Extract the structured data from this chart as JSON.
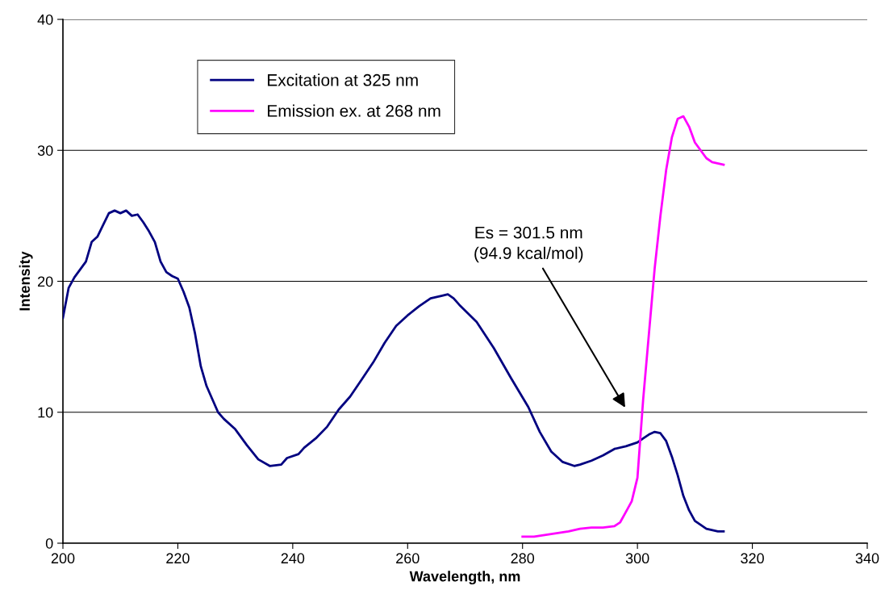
{
  "chart_data": {
    "type": "line",
    "xlabel": "Wavelength, nm",
    "ylabel": "Intensity",
    "xlim": [
      200,
      340
    ],
    "xticks": [
      200,
      220,
      240,
      260,
      280,
      300,
      320,
      340
    ],
    "ylim": [
      0,
      40
    ],
    "yticks": [
      0,
      10,
      20,
      30,
      40
    ],
    "grid": "y",
    "legend": "top left",
    "marker": "none",
    "line_style": "solid",
    "series": [
      {
        "name": "Excitation at 325 nm",
        "color": "#000080",
        "x": [
          200,
          201,
          202,
          204,
          205,
          206,
          207,
          208,
          209,
          210,
          211,
          212,
          213,
          214,
          215,
          216,
          217,
          218,
          219,
          220,
          221,
          222,
          223,
          224,
          225,
          226,
          227,
          228,
          230,
          232,
          234,
          236,
          238,
          239,
          241,
          242,
          244,
          246,
          248,
          250,
          252,
          254,
          256,
          258,
          260,
          262,
          264,
          266,
          267,
          268,
          269,
          272,
          275,
          278,
          281,
          283,
          285,
          287,
          289,
          290,
          292,
          294,
          296,
          298,
          300,
          301,
          302,
          303,
          304,
          305,
          306,
          307,
          308,
          309,
          310,
          312,
          314,
          315
        ],
        "values": [
          17.2,
          19.5,
          20.3,
          21.5,
          23,
          23.4,
          24.3,
          25.2,
          25.4,
          25.2,
          25.4,
          25.0,
          25.1,
          24.5,
          23.8,
          23.0,
          21.5,
          20.7,
          20.4,
          20.2,
          19.2,
          18.0,
          16,
          13.5,
          12,
          11,
          10,
          9.5,
          8.7,
          7.5,
          6.4,
          5.9,
          6.0,
          6.5,
          6.8,
          7.3,
          8.0,
          8.9,
          10.2,
          11.2,
          12.5,
          13.8,
          15.3,
          16.6,
          17.4,
          18.1,
          18.7,
          18.9,
          19.0,
          18.7,
          18.2,
          16.9,
          14.9,
          12.6,
          10.4,
          8.5,
          7.0,
          6.2,
          5.9,
          6.0,
          6.3,
          6.7,
          7.2,
          7.4,
          7.7,
          8.0,
          8.3,
          8.5,
          8.4,
          7.8,
          6.6,
          5.2,
          3.6,
          2.5,
          1.7,
          1.1,
          0.9,
          0.9
        ]
      },
      {
        "name": "Emission ex. at 268 nm",
        "color": "#ff00ff",
        "x": [
          280,
          282,
          285,
          288,
          290,
          292,
          294,
          296,
          297,
          298,
          299,
          300,
          300.5,
          301,
          302,
          303,
          304,
          305,
          306,
          307,
          308,
          309,
          310,
          311,
          312,
          313,
          315
        ],
        "values": [
          0.5,
          0.5,
          0.7,
          0.9,
          1.1,
          1.2,
          1.2,
          1.3,
          1.6,
          2.4,
          3.2,
          5,
          8,
          11,
          16,
          21,
          25,
          28.5,
          31,
          32.4,
          32.6,
          31.8,
          30.6,
          30.0,
          29.4,
          29.1,
          28.9
        ]
      }
    ],
    "annotations": [
      "Es = 301.5 nm\n(94.9 kcal/mol)"
    ]
  }
}
